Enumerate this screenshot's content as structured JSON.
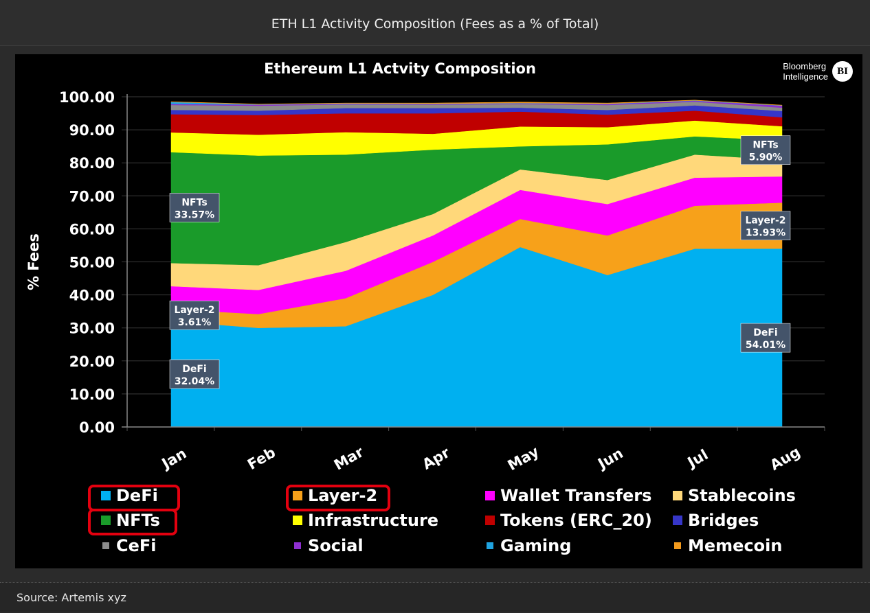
{
  "header": {
    "title": "ETH L1 Activity Composition (Fees as a % of Total)"
  },
  "brand": {
    "line1": "Bloomberg",
    "line2": "Intelligence",
    "badge": "BI"
  },
  "footer": {
    "source": "Source: Artemis xyz"
  },
  "chart_data": {
    "type": "area",
    "stacked": true,
    "title": "Ethereum L1 Actvity Composition",
    "ylabel": "% Fees",
    "xlabel": "",
    "ylim": [
      0,
      100
    ],
    "yticks": [
      "0.00",
      "10.00",
      "20.00",
      "30.00",
      "40.00",
      "50.00",
      "60.00",
      "70.00",
      "80.00",
      "90.00",
      "100.00"
    ],
    "categories": [
      "Jan",
      "Feb",
      "Mar",
      "Apr",
      "May",
      "Jun",
      "Jul",
      "Aug"
    ],
    "grid": true,
    "legend_position": "bottom",
    "series": [
      {
        "name": "DeFi",
        "color": "#00b0f0",
        "values": [
          32.04,
          30.0,
          30.5,
          40.0,
          54.5,
          46.0,
          54.0,
          54.01
        ]
      },
      {
        "name": "Layer-2",
        "color": "#f7a11a",
        "values": [
          3.61,
          4.2,
          8.5,
          10.0,
          8.5,
          12.0,
          13.0,
          13.93
        ]
      },
      {
        "name": "Wallet Transfers",
        "color": "#ff00ff",
        "values": [
          7.0,
          7.3,
          8.3,
          8.0,
          8.8,
          9.5,
          8.5,
          7.95
        ]
      },
      {
        "name": "Stablecoins",
        "color": "#ffd87a",
        "values": [
          7.0,
          7.5,
          8.7,
          6.5,
          6.2,
          7.3,
          7.0,
          5.0
        ]
      },
      {
        "name": "NFTs",
        "color": "#1a9b2a",
        "values": [
          33.57,
          33.2,
          26.5,
          19.5,
          7.0,
          10.8,
          5.5,
          5.9
        ]
      },
      {
        "name": "Infrastructure",
        "color": "#ffff00",
        "values": [
          6.0,
          6.3,
          6.8,
          4.8,
          6.0,
          5.2,
          4.8,
          4.3
        ]
      },
      {
        "name": "Tokens (ERC-20)",
        "color": "#c00000",
        "values": [
          5.5,
          6.0,
          5.7,
          6.2,
          4.5,
          3.8,
          3.0,
          2.7
        ]
      },
      {
        "name": "Bridges",
        "color": "#3636c8",
        "values": [
          1.3,
          1.3,
          1.6,
          1.6,
          1.2,
          1.4,
          1.6,
          1.9
        ]
      },
      {
        "name": "CeFi",
        "color": "#8c8c8c",
        "values": [
          1.5,
          1.5,
          1.1,
          1.0,
          1.1,
          1.5,
          1.1,
          1.0
        ]
      },
      {
        "name": "Social",
        "color": "#8e2fd0",
        "values": [
          0.3,
          0.3,
          0.2,
          0.2,
          0.2,
          0.3,
          0.3,
          0.6
        ]
      },
      {
        "name": "Gaming",
        "color": "#1fa3e0",
        "values": [
          0.6,
          0.1,
          0.1,
          0.1,
          0.1,
          0.1,
          0.1,
          0.1
        ]
      },
      {
        "name": "Memecoin",
        "color": "#f39a1d",
        "values": [
          0.1,
          0.1,
          0.1,
          0.2,
          0.3,
          0.2,
          0.1,
          0.1
        ]
      }
    ],
    "annotations": [
      {
        "series": "NFTs",
        "month": "Jan",
        "line1": "NFTs",
        "line2": "33.57%"
      },
      {
        "series": "Layer-2",
        "month": "Jan",
        "line1": "Layer-2",
        "line2": "3.61%"
      },
      {
        "series": "DeFi",
        "month": "Jan",
        "line1": "DeFi",
        "line2": "32.04%"
      },
      {
        "series": "NFTs",
        "month": "Aug",
        "line1": "NFTs",
        "line2": "5.90%"
      },
      {
        "series": "Layer-2",
        "month": "Aug",
        "line1": "Layer-2",
        "line2": "13.93%"
      },
      {
        "series": "DeFi",
        "month": "Aug",
        "line1": "DeFi",
        "line2": "54.01%"
      }
    ],
    "legend_highlighted": [
      "DeFi",
      "Layer-2",
      "NFTs"
    ],
    "legend_rows": [
      [
        "DeFi",
        "Layer-2",
        "Wallet Transfers",
        "Stablecoins"
      ],
      [
        "NFTs",
        "Infrastructure",
        "Tokens (ERC_20)",
        "Bridges"
      ],
      [
        "CeFi",
        "Social",
        "Gaming",
        "Memecoin"
      ]
    ]
  }
}
